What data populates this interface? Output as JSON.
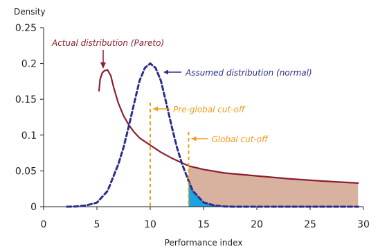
{
  "chart_data": {
    "type": "line",
    "title": "",
    "xlabel": "Performance index",
    "ylabel": "Density",
    "xlim": [
      0,
      30
    ],
    "ylim": [
      0,
      0.25
    ],
    "xticks": [
      0,
      5,
      10,
      15,
      20,
      25,
      30
    ],
    "yticks": [
      0,
      0.05,
      0.1,
      0.15,
      0.2,
      0.25
    ],
    "xtick_labels": [
      "0",
      "5",
      "10",
      "15",
      "20",
      "25",
      "30"
    ],
    "ytick_labels": [
      "0",
      "0.05",
      "0.1",
      "0.15",
      "0.2",
      "0.25"
    ],
    "grid": false,
    "series": [
      {
        "color": "#8B1E2D",
        "style": "solid",
        "x": [
          5.2,
          5.3,
          5.5,
          5.7,
          6.0,
          6.3,
          6.6,
          7.0,
          7.5,
          8.0,
          8.5,
          9.0,
          10.0,
          11.0,
          12.0,
          13.0,
          13.6,
          15.0,
          17.0,
          20.0,
          23.0,
          26.0,
          29.5
        ],
        "y": [
          0.162,
          0.178,
          0.187,
          0.19,
          0.191,
          0.183,
          0.165,
          0.145,
          0.127,
          0.114,
          0.104,
          0.096,
          0.086,
          0.076,
          0.068,
          0.061,
          0.057,
          0.052,
          0.047,
          0.043,
          0.039,
          0.036,
          0.033
        ]
      },
      {
        "color": "#2B2E8B",
        "style": "dashed",
        "x": [
          2.2,
          3.0,
          4.0,
          5.0,
          6.0,
          7.0,
          7.5,
          8.0,
          8.5,
          9.0,
          9.5,
          10.0,
          10.5,
          11.0,
          11.5,
          12.0,
          12.5,
          13.0,
          13.6,
          14.0,
          15.0,
          16.0,
          17.0,
          18.0,
          29.5
        ],
        "y": [
          0.0,
          0.0003,
          0.0018,
          0.0057,
          0.022,
          0.059,
          0.083,
          0.113,
          0.145,
          0.176,
          0.194,
          0.2,
          0.194,
          0.176,
          0.145,
          0.113,
          0.083,
          0.059,
          0.036,
          0.022,
          0.006,
          0.0018,
          0.0003,
          0.0,
          0.0
        ]
      }
    ],
    "cutoffs": [
      {
        "x": 10.0,
        "label": "Pre-global cut-off",
        "color": "#F39C1A"
      },
      {
        "x": 13.6,
        "label": "Global cut-off",
        "color": "#F39C1A"
      }
    ],
    "annotations": [
      {
        "text": "Actual distribution (Pareto)",
        "color": "#8B1E2D"
      },
      {
        "text": "Assumed distribution (normal)",
        "color": "#2B2E8B"
      }
    ],
    "fill_colors": {
      "pareto_tail": "#D9B29F",
      "normal_tail": "#1BA4E0"
    },
    "tail_start": 13.6,
    "tail_end": 29.5
  }
}
